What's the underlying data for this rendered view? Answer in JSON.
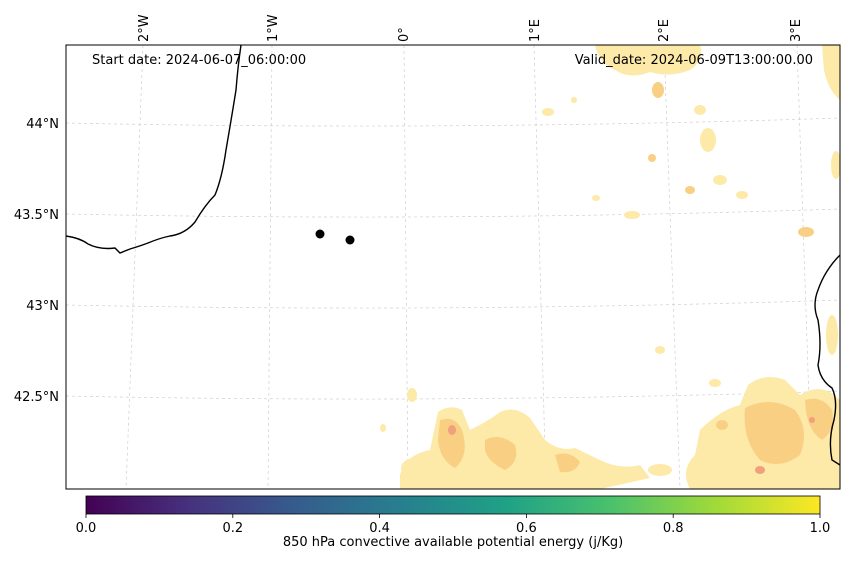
{
  "map": {
    "start_label": "Start date: 2024-06-07_06:00:00",
    "valid_label": "Valid_date: 2024-06-09T13:00:00.00",
    "lon_labels": [
      "2°W",
      "1°W",
      "0°",
      "1°E",
      "2°E",
      "3°E"
    ],
    "lat_labels": [
      "44°N",
      "43.5°N",
      "43°N",
      "42.5°N"
    ],
    "points_count": 2
  },
  "colorbar": {
    "label": "850 hPa convective available potential energy (j/Kg)",
    "ticks": [
      "0.0",
      "0.2",
      "0.4",
      "0.6",
      "0.8",
      "1.0"
    ],
    "min": 0.0,
    "max": 1.0,
    "stops": [
      "#440154",
      "#46327e",
      "#365c8d",
      "#277f8e",
      "#1fa187",
      "#4ac16d",
      "#a0da39",
      "#fde725"
    ]
  },
  "field_colors": {
    "light": "#fde9a8",
    "medium": "#f9cf84",
    "strong": "#f0a07a"
  }
}
